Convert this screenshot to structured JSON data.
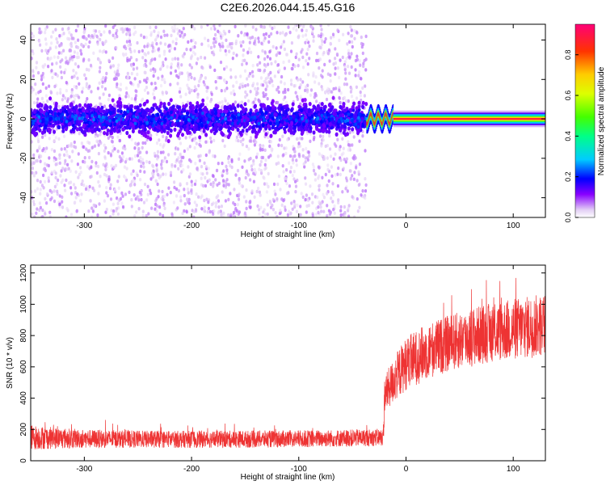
{
  "title": "C2E6.2026.044.15.45.G16",
  "chart_data": [
    {
      "type": "heatmap",
      "xlabel": "Height of straight line (km)",
      "ylabel": "Frequency (Hz)",
      "xlim": [
        -350,
        130
      ],
      "ylim": [
        -50,
        48
      ],
      "xticks": [
        -300,
        -200,
        -100,
        0,
        100
      ],
      "yticks": [
        -40,
        -20,
        0,
        20,
        40
      ],
      "grid": false,
      "colorbar": {
        "label": "Normalized spectral amplitude",
        "range": [
          0,
          0.95
        ],
        "ticks": [
          0.0,
          0.2,
          0.4,
          0.6,
          0.8
        ],
        "colormap": "rainbow"
      },
      "regions": [
        {
          "x": [
            -350,
            -37
          ],
          "description_values": {
            "core_band_hz": [
              -8,
              8
            ],
            "peak_amplitude": 0.25
          }
        },
        {
          "x": [
            -37,
            -12
          ],
          "description_values": {
            "core_band_hz": [
              -3,
              4
            ],
            "peak_amplitude": 0.85
          }
        },
        {
          "x": [
            -12,
            130
          ],
          "description_values": {
            "core_band_hz": [
              -1.5,
              1.5
            ],
            "peak_amplitude": 0.9
          }
        }
      ]
    },
    {
      "type": "line",
      "xlabel": "Height of straight line (km)",
      "ylabel": "SNR (10 * v/v)",
      "xlim": [
        -350,
        130
      ],
      "ylim": [
        0,
        1250
      ],
      "xticks": [
        -300,
        -200,
        -100,
        0,
        100
      ],
      "yticks": [
        0,
        200,
        400,
        600,
        800,
        1000,
        1200
      ],
      "grid": false,
      "series": [
        {
          "color": "#ee3333",
          "x": [
            -350,
            -330,
            -300,
            -250,
            -200,
            -150,
            -100,
            -50,
            -21,
            -20,
            -10,
            0,
            20,
            40,
            60,
            80,
            100,
            120,
            130
          ],
          "mean": [
            150,
            145,
            140,
            138,
            137,
            138,
            140,
            145,
            150,
            420,
            530,
            620,
            700,
            750,
            790,
            820,
            840,
            860,
            870
          ],
          "spread": [
            80,
            70,
            60,
            55,
            55,
            55,
            55,
            55,
            55,
            120,
            150,
            170,
            180,
            180,
            190,
            190,
            200,
            200,
            200
          ]
        }
      ]
    }
  ]
}
